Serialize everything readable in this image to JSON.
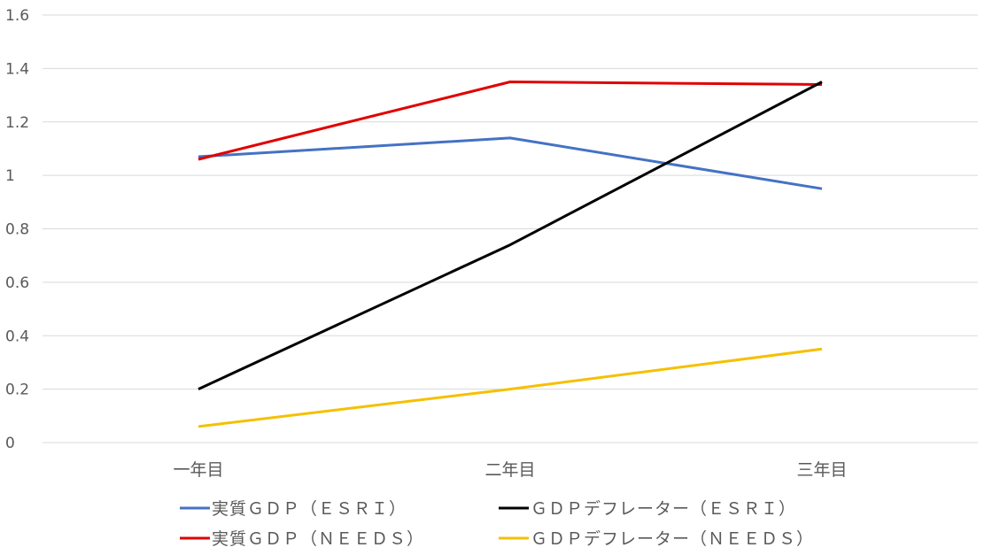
{
  "chart_data": {
    "type": "line",
    "title": "",
    "xlabel": "",
    "ylabel": "",
    "categories": [
      "一年目",
      "二年目",
      "三年目"
    ],
    "ylim": [
      0,
      1.6
    ],
    "yticks": [
      0,
      0.2,
      0.4,
      0.6,
      0.8,
      1,
      1.2,
      1.4,
      1.6
    ],
    "grid": true,
    "legend_position": "bottom",
    "series": [
      {
        "name": "実質ＧＤＰ（ＥＳＲＩ）",
        "color": "#4472C4",
        "values": [
          1.07,
          1.14,
          0.95
        ]
      },
      {
        "name": "ＧＤＰデフレーター（ＥＳＲＩ）",
        "color": "#000000",
        "values": [
          0.2,
          0.74,
          1.35
        ]
      },
      {
        "name": "実質ＧＤＰ（ＮＥＥＤＳ）",
        "color": "#E00000",
        "values": [
          1.06,
          1.35,
          1.34
        ]
      },
      {
        "name": "ＧＤＰデフレーター（ＮＥＥＤＳ）",
        "color": "#F5C000",
        "values": [
          0.06,
          0.2,
          0.35
        ]
      }
    ]
  }
}
